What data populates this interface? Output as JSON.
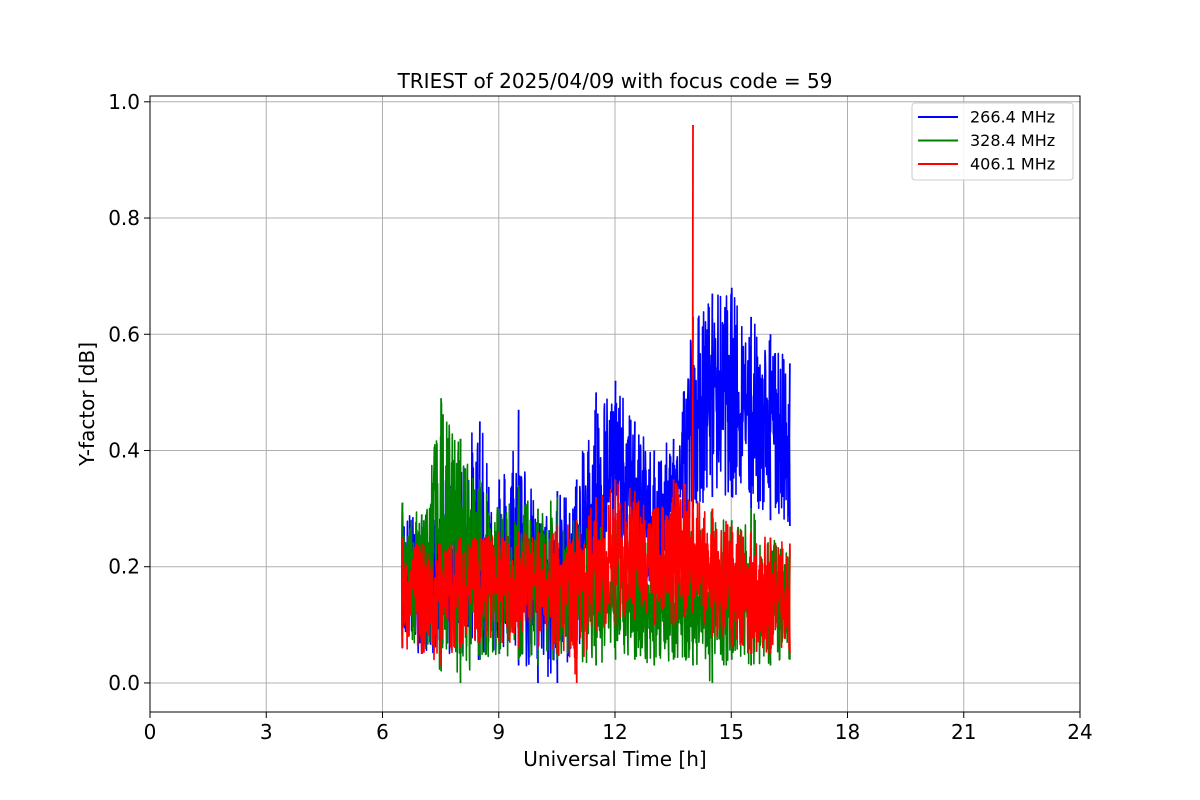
{
  "chart_data": {
    "type": "line",
    "title": "TRIEST of 2025/04/09 with focus code = 59",
    "xlabel": "Universal Time [h]",
    "ylabel": "Y-factor [dB]",
    "xlim": [
      0,
      24
    ],
    "ylim": [
      -0.05,
      1.01
    ],
    "xticks": [
      0,
      3,
      6,
      9,
      12,
      15,
      18,
      21,
      24
    ],
    "yticks": [
      0.0,
      0.2,
      0.4,
      0.6,
      0.8,
      1.0
    ],
    "xtick_labels": [
      "0",
      "3",
      "6",
      "9",
      "12",
      "15",
      "18",
      "21",
      "24"
    ],
    "ytick_labels": [
      "0.0",
      "0.2",
      "0.4",
      "0.6",
      "0.8",
      "1.0"
    ],
    "grid": true,
    "legend_position": "top-right",
    "series": [
      {
        "name": "266.4 MHz",
        "color": "#0000ff",
        "x": [
          6.5,
          7.0,
          7.5,
          8.0,
          8.5,
          9.0,
          9.5,
          10.0,
          10.5,
          11.0,
          11.5,
          12.0,
          12.5,
          13.0,
          13.5,
          14.0,
          14.5,
          15.0,
          15.5,
          16.0,
          16.5
        ],
        "y": [
          0.2,
          0.18,
          0.2,
          0.22,
          0.24,
          0.2,
          0.22,
          0.16,
          0.18,
          0.22,
          0.33,
          0.36,
          0.32,
          0.28,
          0.3,
          0.45,
          0.52,
          0.5,
          0.47,
          0.44,
          0.42
        ],
        "upper": [
          0.31,
          0.28,
          0.33,
          0.42,
          0.45,
          0.35,
          0.47,
          0.28,
          0.33,
          0.35,
          0.5,
          0.52,
          0.45,
          0.4,
          0.42,
          0.63,
          0.67,
          0.68,
          0.63,
          0.6,
          0.55
        ],
        "lower": [
          0.06,
          0.05,
          0.05,
          0.04,
          0.04,
          0.05,
          0.03,
          0.0,
          0.0,
          0.05,
          0.12,
          0.15,
          0.18,
          0.16,
          0.2,
          0.3,
          0.32,
          0.32,
          0.3,
          0.28,
          0.27
        ]
      },
      {
        "name": "328.4 MHz",
        "color": "#008000",
        "x": [
          6.5,
          7.0,
          7.5,
          8.0,
          8.5,
          9.0,
          9.5,
          10.0,
          10.5,
          11.0,
          11.5,
          12.0,
          12.5,
          13.0,
          13.5,
          14.0,
          14.5,
          15.0,
          15.5,
          16.0,
          16.5
        ],
        "y": [
          0.22,
          0.2,
          0.26,
          0.24,
          0.2,
          0.18,
          0.19,
          0.16,
          0.17,
          0.15,
          0.14,
          0.13,
          0.12,
          0.12,
          0.12,
          0.13,
          0.13,
          0.14,
          0.14,
          0.12,
          0.11
        ],
        "upper": [
          0.31,
          0.29,
          0.49,
          0.42,
          0.35,
          0.3,
          0.34,
          0.3,
          0.32,
          0.28,
          0.27,
          0.28,
          0.26,
          0.25,
          0.27,
          0.26,
          0.3,
          0.28,
          0.3,
          0.25,
          0.23
        ],
        "lower": [
          0.08,
          0.06,
          0.02,
          0.0,
          0.04,
          0.05,
          0.04,
          0.03,
          0.04,
          0.04,
          0.03,
          0.04,
          0.04,
          0.03,
          0.04,
          0.03,
          0.0,
          0.04,
          0.03,
          0.03,
          0.04
        ]
      },
      {
        "name": "406.1 MHz",
        "color": "#ff0000",
        "x": [
          6.5,
          7.0,
          7.5,
          8.0,
          8.5,
          9.0,
          9.5,
          10.0,
          10.5,
          11.0,
          11.5,
          12.0,
          12.5,
          13.0,
          13.5,
          14.0,
          14.5,
          15.0,
          15.5,
          16.0,
          16.5
        ],
        "y": [
          0.17,
          0.16,
          0.16,
          0.16,
          0.16,
          0.17,
          0.17,
          0.17,
          0.17,
          0.18,
          0.2,
          0.22,
          0.22,
          0.2,
          0.22,
          0.24,
          0.18,
          0.16,
          0.15,
          0.15,
          0.14
        ],
        "upper": [
          0.25,
          0.24,
          0.24,
          0.25,
          0.25,
          0.26,
          0.26,
          0.26,
          0.27,
          0.28,
          0.32,
          0.35,
          0.33,
          0.3,
          0.35,
          0.96,
          0.3,
          0.27,
          0.26,
          0.25,
          0.24
        ],
        "lower": [
          0.06,
          0.05,
          0.03,
          0.06,
          0.07,
          0.07,
          0.06,
          0.06,
          0.05,
          0.0,
          0.09,
          0.1,
          0.11,
          0.1,
          0.1,
          0.12,
          0.08,
          0.06,
          0.05,
          0.05,
          0.05
        ]
      }
    ]
  }
}
